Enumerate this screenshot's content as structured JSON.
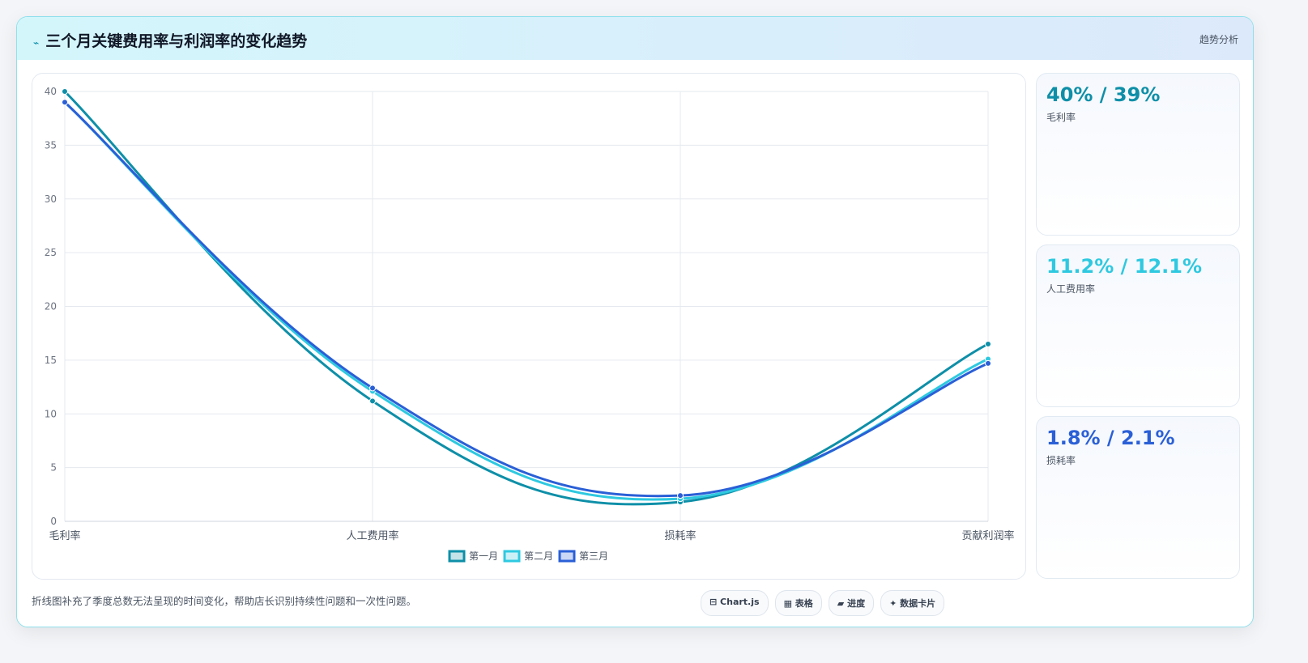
{
  "header": {
    "icon": "⌁",
    "title": "三个月关键费用率与利润率的变化趋势",
    "tag": "趋势分析"
  },
  "chart_data": {
    "type": "line",
    "categories": [
      "毛利率",
      "人工费用率",
      "损耗率",
      "贡献利润率"
    ],
    "series": [
      {
        "name": "第一月",
        "color": "#0e8fa8",
        "values": [
          40,
          11.2,
          1.8,
          16.5
        ]
      },
      {
        "name": "第二月",
        "color": "#2ec9e0",
        "values": [
          39,
          12.1,
          2.1,
          15.1
        ]
      },
      {
        "name": "第三月",
        "color": "#2a5fd6",
        "values": [
          39,
          12.4,
          2.4,
          14.7
        ]
      }
    ],
    "ylim": [
      0,
      40
    ],
    "yticks": [
      0,
      5,
      10,
      15,
      20,
      25,
      30,
      35,
      40
    ],
    "grid": true,
    "legend": "bottom"
  },
  "cards": [
    {
      "value": "40% / 39%",
      "label": "毛利率",
      "color": "#0e8fa8"
    },
    {
      "value": "11.2% / 12.1%",
      "label": "人工费用率",
      "color": "#2ec9e0"
    },
    {
      "value": "1.8% / 2.1%",
      "label": "损耗率",
      "color": "#2a5fd6"
    }
  ],
  "footer": {
    "note": "折线图补充了季度总数无法呈现的时间变化，帮助店长识别持续性问题和一次性问题。",
    "buttons": [
      "⊟ Chart.js",
      "▦ 表格",
      "▰ 进度",
      "✦ 数据卡片"
    ]
  }
}
